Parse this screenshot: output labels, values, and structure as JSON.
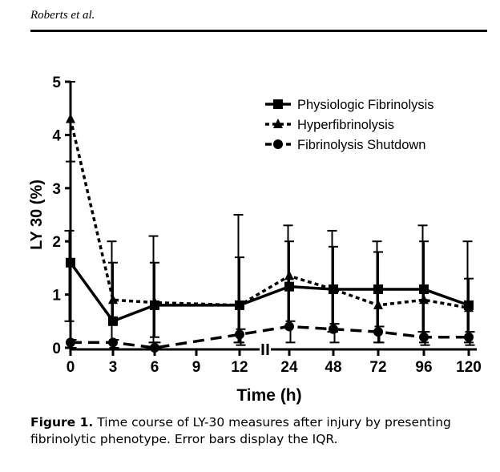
{
  "header": {
    "running_head": "Roberts et al."
  },
  "caption": {
    "label": "Figure 1.",
    "text": "Time course of LY-30 measures after injury by presenting fibrinolytic phenotype. Error bars display the IQR."
  },
  "chart_data": {
    "type": "line",
    "xlabel": "Time (h)",
    "ylabel": "LY 30 (%)",
    "ylim": [
      0,
      5
    ],
    "yticks": [
      "0",
      "1",
      "2",
      "3",
      "4",
      "5"
    ],
    "categories": [
      "0",
      "3",
      "6",
      "9",
      "12",
      "24",
      "48",
      "72",
      "96",
      "120"
    ],
    "axis_break_between": [
      "12",
      "24"
    ],
    "grid": false,
    "legend_position": "top-right",
    "series": [
      {
        "name": "Physiologic Fibrinolysis",
        "line_style": "solid",
        "marker": "square",
        "x": [
          "0",
          "3",
          "6",
          "12",
          "24",
          "48",
          "72",
          "96",
          "120"
        ],
        "values": [
          1.6,
          0.5,
          0.8,
          0.8,
          1.15,
          1.1,
          1.1,
          1.1,
          0.8
        ],
        "iqr": [
          [
            0.5,
            2.2
          ],
          [
            0.1,
            2.0
          ],
          [
            0.1,
            2.1
          ],
          [
            0.1,
            2.5
          ],
          [
            0.4,
            2.3
          ],
          [
            0.3,
            2.2
          ],
          [
            0.3,
            2.0
          ],
          [
            0.3,
            2.3
          ],
          [
            0.2,
            2.0
          ]
        ]
      },
      {
        "name": "Hyperfibrinolysis",
        "line_style": "dotted",
        "marker": "triangle",
        "x": [
          "0",
          "3",
          "6",
          "12",
          "24",
          "48",
          "72",
          "96",
          "120"
        ],
        "values": [
          4.3,
          0.9,
          0.85,
          0.8,
          1.35,
          1.1,
          0.8,
          0.9,
          0.75
        ],
        "iqr": [
          [
            3.5,
            5.0
          ],
          [
            0.5,
            1.6
          ],
          [
            0.2,
            1.6
          ],
          [
            0.1,
            1.7
          ],
          [
            0.4,
            2.0
          ],
          [
            0.3,
            1.9
          ],
          [
            0.1,
            1.8
          ],
          [
            0.1,
            2.0
          ],
          [
            0.1,
            1.3
          ]
        ]
      },
      {
        "name": "Fibrinolysis Shutdown",
        "line_style": "dashed",
        "marker": "circle",
        "x": [
          "0",
          "3",
          "6",
          "12",
          "24",
          "48",
          "72",
          "96",
          "120"
        ],
        "values": [
          0.1,
          0.1,
          0.0,
          0.25,
          0.4,
          0.35,
          0.3,
          0.2,
          0.2
        ],
        "iqr": [
          [
            0.0,
            0.15
          ],
          [
            0.0,
            0.15
          ],
          [
            0.0,
            0.1
          ],
          [
            0.05,
            0.35
          ],
          [
            0.1,
            0.5
          ],
          [
            0.1,
            0.45
          ],
          [
            0.1,
            0.4
          ],
          [
            0.05,
            0.3
          ],
          [
            0.05,
            0.3
          ]
        ]
      }
    ]
  }
}
